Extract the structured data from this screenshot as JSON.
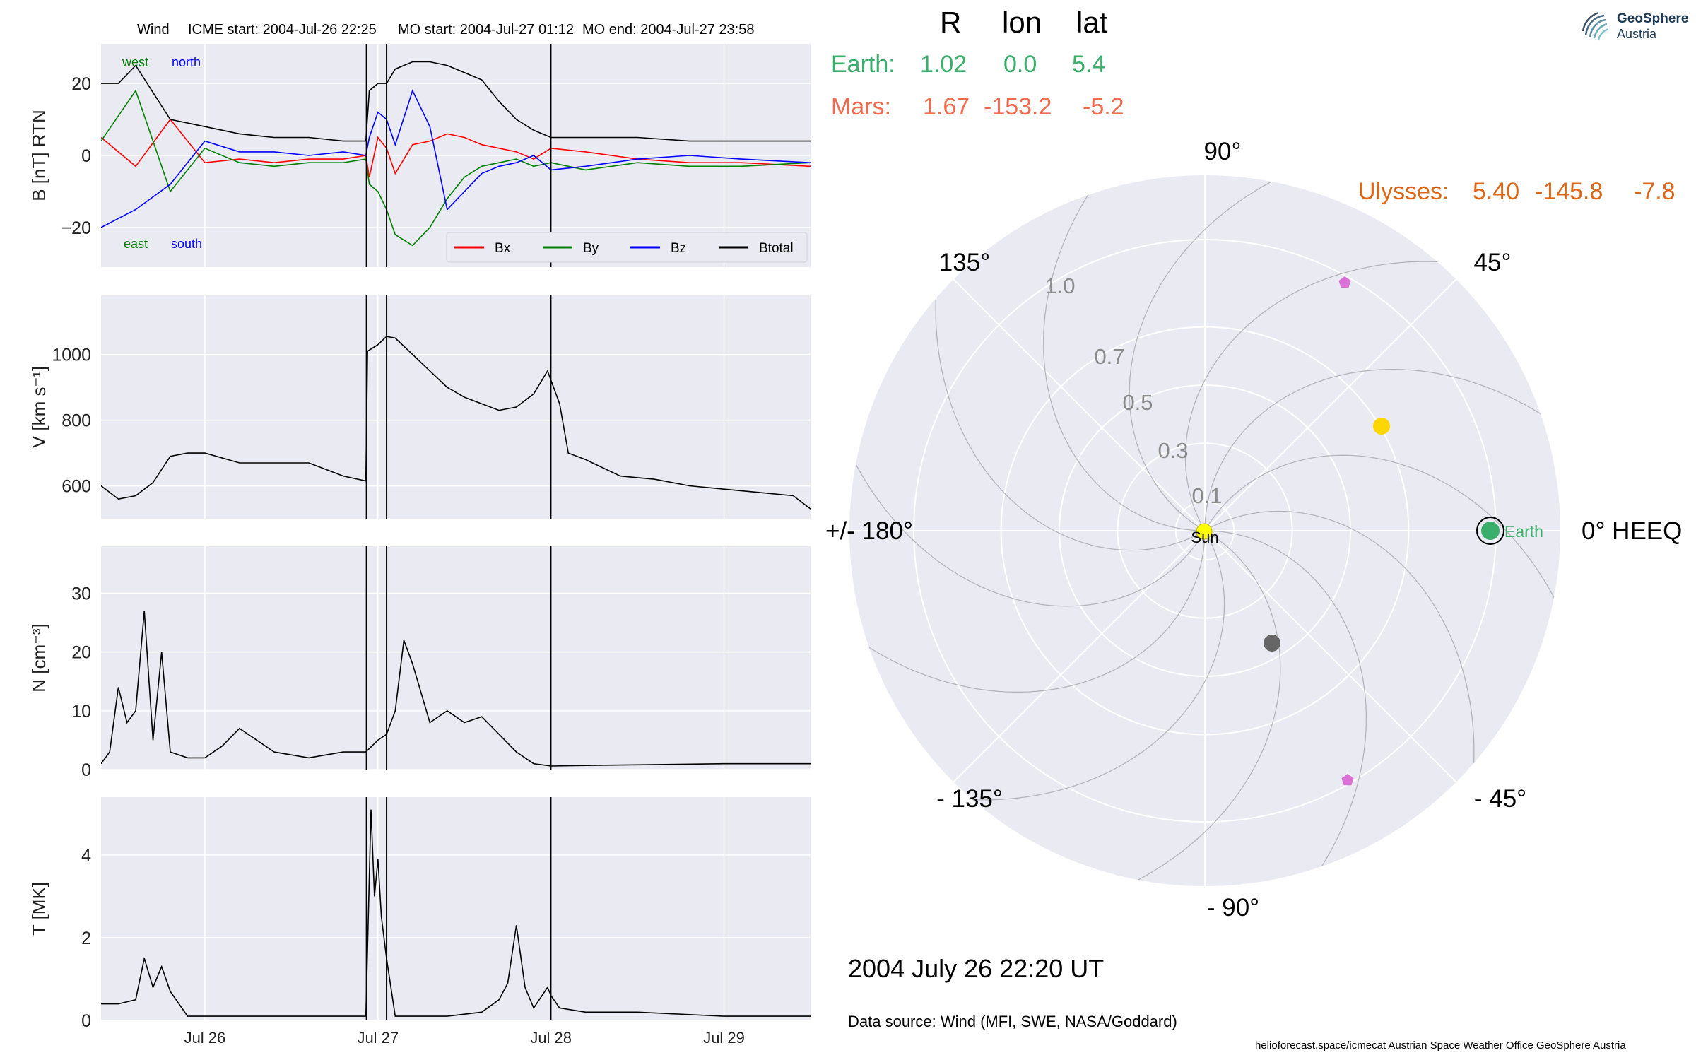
{
  "timeseries": {
    "title_parts": [
      "Wind",
      "ICME start: 2004-Jul-26 22:25",
      "MO start: 2004-Jul-27 01:12",
      "MO end: 2004-Jul-27 23:58"
    ],
    "x_range_days": [
      25.4,
      29.5
    ],
    "x_tick_values": [
      26,
      27,
      28,
      29
    ],
    "x_tick_labels": [
      "Jul 26",
      "Jul 27",
      "Jul 28",
      "Jul 29"
    ],
    "event_lines_days": [
      26.934,
      27.05,
      27.999
    ],
    "panels": [
      {
        "ylabel": "B [nT] RTN",
        "ylim": [
          -31,
          31
        ],
        "yticks": [
          -20,
          0,
          20
        ],
        "ytick_labels": [
          "−20",
          "0",
          "20"
        ],
        "annotations": [
          {
            "text": "west",
            "color": "#008000"
          },
          {
            "text": "north",
            "color": "#0000ff"
          },
          {
            "text": "east",
            "color": "#008000"
          },
          {
            "text": "south",
            "color": "#0000ff"
          }
        ],
        "legend": [
          "Bx",
          "By",
          "Bz",
          "Btotal"
        ]
      },
      {
        "ylabel": "V [km s⁻¹]",
        "ylim": [
          500,
          1180
        ],
        "yticks": [
          600,
          800,
          1000
        ],
        "ytick_labels": [
          "600",
          "800",
          "1000"
        ]
      },
      {
        "ylabel": "N [cm⁻³]",
        "ylim": [
          0,
          38
        ],
        "yticks": [
          0,
          10,
          20,
          30
        ],
        "ytick_labels": [
          "0",
          "10",
          "20",
          "30"
        ]
      },
      {
        "ylabel": "T [MK]",
        "ylim": [
          0,
          5.4
        ],
        "yticks": [
          0,
          2,
          4
        ],
        "ytick_labels": [
          "0",
          "2",
          "4"
        ]
      }
    ]
  },
  "chart_data": [
    {
      "type": "line",
      "ylabel": "B [nT] RTN",
      "x_unit": "day of July 2004",
      "ylim": [
        -31,
        31
      ],
      "series": [
        {
          "name": "Bx",
          "color": "#ff0000",
          "x": [
            25.4,
            25.6,
            25.8,
            26.0,
            26.2,
            26.4,
            26.6,
            26.8,
            26.93,
            26.95,
            27.0,
            27.05,
            27.1,
            27.2,
            27.3,
            27.4,
            27.5,
            27.6,
            27.7,
            27.8,
            27.9,
            28.0,
            28.2,
            28.5,
            28.8,
            29.1,
            29.5
          ],
          "y": [
            5,
            -3,
            10,
            -2,
            -1,
            -2,
            -1,
            -1,
            0,
            -6,
            5,
            2,
            -5,
            3,
            4,
            6,
            5,
            3,
            2,
            1,
            -1,
            2,
            1,
            -1,
            -2,
            -2,
            -3
          ]
        },
        {
          "name": "By",
          "color": "#008000",
          "x": [
            25.4,
            25.6,
            25.8,
            26.0,
            26.2,
            26.4,
            26.6,
            26.8,
            26.93,
            26.95,
            27.0,
            27.05,
            27.1,
            27.2,
            27.3,
            27.4,
            27.5,
            27.6,
            27.7,
            27.8,
            27.9,
            28.0,
            28.2,
            28.5,
            28.8,
            29.1,
            29.5
          ],
          "y": [
            4,
            18,
            -10,
            2,
            -2,
            -3,
            -2,
            -2,
            -1,
            -8,
            -10,
            -15,
            -22,
            -25,
            -20,
            -12,
            -6,
            -3,
            -2,
            -1,
            -3,
            -2,
            -4,
            -2,
            -3,
            -3,
            -2
          ]
        },
        {
          "name": "Bz",
          "color": "#0000ff",
          "x": [
            25.4,
            25.6,
            25.8,
            26.0,
            26.2,
            26.4,
            26.6,
            26.8,
            26.93,
            26.95,
            27.0,
            27.05,
            27.1,
            27.2,
            27.3,
            27.4,
            27.5,
            27.6,
            27.7,
            27.8,
            27.9,
            28.0,
            28.2,
            28.5,
            28.8,
            29.1,
            29.5
          ],
          "y": [
            -20,
            -15,
            -8,
            4,
            1,
            1,
            0,
            1,
            0,
            5,
            12,
            10,
            3,
            18,
            8,
            -15,
            -10,
            -5,
            -3,
            -2,
            0,
            -4,
            -3,
            -1,
            0,
            -1,
            -2
          ]
        },
        {
          "name": "Btotal",
          "color": "#000000",
          "x": [
            25.4,
            25.5,
            25.6,
            25.8,
            26.0,
            26.2,
            26.4,
            26.6,
            26.8,
            26.93,
            26.95,
            27.0,
            27.05,
            27.1,
            27.2,
            27.3,
            27.4,
            27.5,
            27.6,
            27.7,
            27.8,
            27.9,
            28.0,
            28.2,
            28.5,
            28.8,
            29.1,
            29.5
          ],
          "y": [
            20,
            20,
            25,
            10,
            8,
            6,
            5,
            5,
            4,
            4,
            18,
            20,
            20,
            24,
            26,
            26,
            25,
            23,
            21,
            15,
            10,
            7,
            5,
            5,
            5,
            4,
            4,
            4
          ]
        }
      ]
    },
    {
      "type": "line",
      "ylabel": "V [km s⁻¹]",
      "ylim": [
        500,
        1180
      ],
      "series": [
        {
          "name": "",
          "color": "#000000",
          "x": [
            25.4,
            25.5,
            25.6,
            25.7,
            25.8,
            25.9,
            26.0,
            26.2,
            26.4,
            26.6,
            26.8,
            26.93,
            26.94,
            27.0,
            27.05,
            27.1,
            27.2,
            27.3,
            27.4,
            27.5,
            27.6,
            27.7,
            27.8,
            27.9,
            27.98,
            28.05,
            28.1,
            28.2,
            28.4,
            28.6,
            28.8,
            29.0,
            29.2,
            29.4,
            29.5
          ],
          "y": [
            600,
            560,
            570,
            610,
            690,
            700,
            700,
            670,
            670,
            670,
            630,
            615,
            1010,
            1030,
            1055,
            1050,
            1000,
            950,
            900,
            870,
            850,
            830,
            840,
            880,
            950,
            850,
            700,
            680,
            630,
            620,
            600,
            590,
            580,
            570,
            530
          ]
        }
      ]
    },
    {
      "type": "line",
      "ylabel": "N [cm⁻³]",
      "ylim": [
        0,
        38
      ],
      "series": [
        {
          "name": "",
          "color": "#000000",
          "x": [
            25.4,
            25.45,
            25.5,
            25.55,
            25.6,
            25.65,
            25.7,
            25.75,
            25.8,
            25.9,
            26.0,
            26.1,
            26.2,
            26.4,
            26.6,
            26.8,
            26.9,
            26.93,
            27.0,
            27.05,
            27.1,
            27.15,
            27.2,
            27.3,
            27.4,
            27.5,
            27.6,
            27.7,
            27.8,
            27.9,
            28.0,
            28.2,
            28.5,
            29.0,
            29.5
          ],
          "y": [
            1,
            3,
            14,
            8,
            10,
            27,
            5,
            20,
            3,
            2,
            2,
            4,
            7,
            3,
            2,
            3,
            3,
            3,
            5,
            6,
            10,
            22,
            18,
            8,
            10,
            8,
            9,
            6,
            3,
            1,
            0.6,
            0.7,
            0.8,
            1,
            1
          ]
        }
      ]
    },
    {
      "type": "line",
      "ylabel": "T [MK]",
      "ylim": [
        0,
        5.4
      ],
      "series": [
        {
          "name": "",
          "color": "#000000",
          "x": [
            25.4,
            25.5,
            25.6,
            25.65,
            25.7,
            25.75,
            25.8,
            25.9,
            26.0,
            26.2,
            26.4,
            26.6,
            26.8,
            26.93,
            26.96,
            26.98,
            27.0,
            27.02,
            27.05,
            27.1,
            27.2,
            27.4,
            27.6,
            27.7,
            27.75,
            27.8,
            27.85,
            27.9,
            27.98,
            28.0,
            28.05,
            28.2,
            28.5,
            29.0,
            29.5
          ],
          "y": [
            0.4,
            0.4,
            0.5,
            1.5,
            0.8,
            1.3,
            0.7,
            0.1,
            0.1,
            0.1,
            0.1,
            0.1,
            0.1,
            0.1,
            5.1,
            3.0,
            3.9,
            2.5,
            1.5,
            0.1,
            0.1,
            0.1,
            0.2,
            0.5,
            0.9,
            2.3,
            0.8,
            0.3,
            0.8,
            0.6,
            0.3,
            0.2,
            0.2,
            0.1,
            0.1
          ]
        }
      ]
    }
  ],
  "polar": {
    "header_cols": [
      "R",
      "lon",
      "lat"
    ],
    "rows": [
      {
        "name": "Earth:",
        "R": "1.02",
        "lon": "0.0",
        "lat": "5.4",
        "color": "#3aae6b"
      },
      {
        "name": "Mars:",
        "R": "1.67",
        "lon": "-153.2",
        "lat": "-5.2",
        "color": "#f36b4e"
      }
    ],
    "ulysses": {
      "name": "Ulysses:",
      "R": "5.40",
      "lon": "-145.8",
      "lat": "-7.8",
      "color": "#dd6616"
    },
    "angle_labels": [
      "90°",
      "45°",
      "0° HEEQ",
      "- 45°",
      "- 90°",
      "- 135°",
      "+/- 180°",
      "135°"
    ],
    "radial_labels": [
      "0.1",
      "0.3",
      "0.5",
      "0.7",
      "1.0"
    ],
    "sun_label": "Sun",
    "earth_label": "Earth",
    "colors": {
      "background": "#eaeaf2",
      "sun": "#ffff00",
      "earth": "#3aae6b",
      "venus": "#ffd700",
      "mercury": "#666666",
      "markers": "#da70d6"
    }
  },
  "date_label": "2004 July 26  22:20 UT",
  "data_source": "Data source: Wind (MFI, SWE, NASA/Goddard)",
  "footer": "helioforecast.space/icmecat   Austrian Space Weather Office   GeoSphere Austria",
  "logo": {
    "line1": "GeoSphere",
    "line2": "Austria"
  }
}
